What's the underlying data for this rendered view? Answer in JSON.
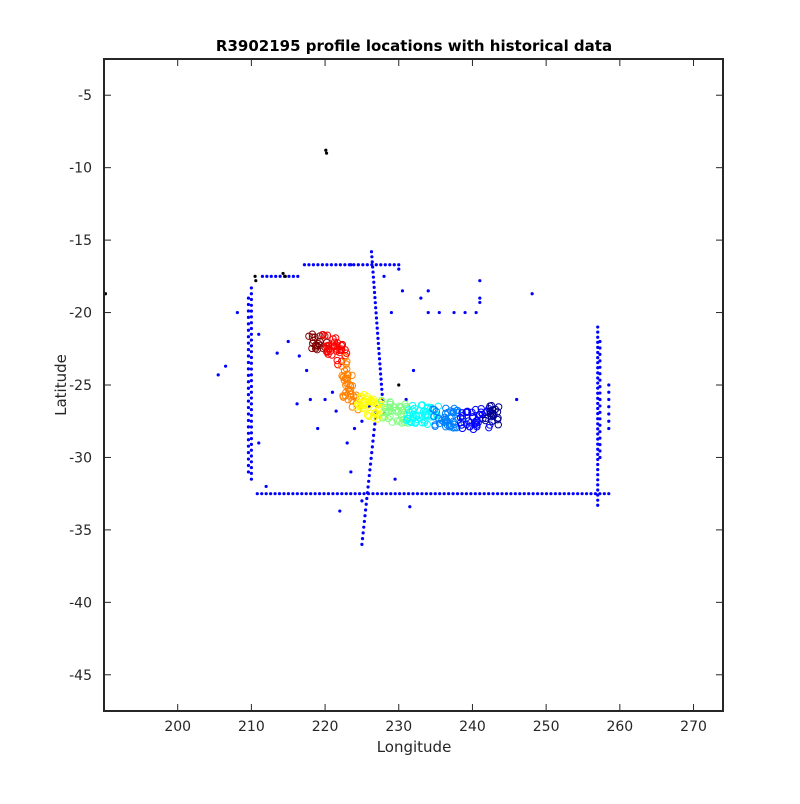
{
  "chart_data": {
    "type": "scatter",
    "title": "R3902195 profile locations with historical data",
    "xlabel": "Longitude",
    "ylabel": "Latitude",
    "xlim": [
      190,
      274
    ],
    "ylim": [
      -47.5,
      -2.5
    ],
    "xticks": [
      200,
      210,
      220,
      230,
      240,
      250,
      260,
      270
    ],
    "yticks": [
      -5,
      -10,
      -15,
      -20,
      -25,
      -30,
      -35,
      -40,
      -45
    ],
    "x_tick_labels": [
      "200",
      "210",
      "220",
      "230",
      "240",
      "250",
      "260",
      "270"
    ],
    "y_tick_labels": [
      "-5",
      "-10",
      "-15",
      "-20",
      "-25",
      "-30",
      "-35",
      "-40",
      "-45"
    ],
    "grid": false,
    "legend": "none",
    "colors": {
      "historical": "#0000ff",
      "black_points": "#000000",
      "axis": "#262626",
      "profile_colormap": [
        "#00008f",
        "#0000ff",
        "#0080ff",
        "#00ffff",
        "#80ff80",
        "#ffff00",
        "#ff8000",
        "#ff0000",
        "#800000"
      ]
    },
    "series": [
      {
        "marker": "dot",
        "color": "#0000ff",
        "segments": [
          {
            "from": [
              210.8,
              -32.5
            ],
            "to": [
              258.5,
              -32.5
            ],
            "step": 0.6
          },
          {
            "from": [
              211.5,
              -17.5
            ],
            "to": [
              216.3,
              -17.5
            ],
            "step": 0.6
          },
          {
            "from": [
              217.2,
              -16.7
            ],
            "to": [
              230.0,
              -16.7
            ],
            "step": 0.6
          },
          {
            "from": [
              210.0,
              -18.3
            ],
            "to": [
              210.0,
              -31.5
            ],
            "step": 0.4
          },
          {
            "from": [
              209.6,
              -19.0
            ],
            "to": [
              209.6,
              -31.0
            ],
            "step": 0.45
          },
          {
            "from": [
              257.0,
              -21.0
            ],
            "to": [
              257.0,
              -33.3
            ],
            "step": 0.35
          },
          {
            "from": [
              257.3,
              -22.0
            ],
            "to": [
              257.3,
              -30.0
            ],
            "step": 0.45
          },
          {
            "from": [
              258.5,
              -25.0
            ],
            "to": [
              258.5,
              -28.0
            ],
            "step": 0.5
          },
          {
            "from": [
              226.3,
              -15.8
            ],
            "to": [
              227.8,
              -26.0
            ],
            "step": 0.35
          },
          {
            "from": [
              227.0,
              -26.5
            ],
            "to": [
              225.0,
              -36.0
            ],
            "step": 0.4
          }
        ],
        "points": [
          [
            208.1,
            -20.0
          ],
          [
            206.5,
            -23.7
          ],
          [
            205.5,
            -24.3
          ],
          [
            211.0,
            -21.5
          ],
          [
            211.0,
            -29.0
          ],
          [
            212.0,
            -32.0
          ],
          [
            213.5,
            -22.8
          ],
          [
            215.0,
            -22.0
          ],
          [
            216.5,
            -23.0
          ],
          [
            217.5,
            -24.0
          ],
          [
            216.2,
            -26.3
          ],
          [
            218.0,
            -26.0
          ],
          [
            219.0,
            -28.0
          ],
          [
            220.0,
            -26.0
          ],
          [
            221.0,
            -25.5
          ],
          [
            221.5,
            -26.8
          ],
          [
            222.0,
            -33.7
          ],
          [
            223.0,
            -29.0
          ],
          [
            223.5,
            -31.0
          ],
          [
            224.0,
            -28.0
          ],
          [
            225.0,
            -27.5
          ],
          [
            226.0,
            -26.5
          ],
          [
            223.5,
            -16.7
          ],
          [
            228.0,
            -17.5
          ],
          [
            229.0,
            -20.0
          ],
          [
            230.5,
            -18.5
          ],
          [
            230.0,
            -17.0
          ],
          [
            231.0,
            -26.0
          ],
          [
            231.5,
            -33.4
          ],
          [
            232.0,
            -24.0
          ],
          [
            233.0,
            -19.0
          ],
          [
            234.0,
            -18.5
          ],
          [
            234.0,
            -20.0
          ],
          [
            235.5,
            -20.0
          ],
          [
            237.5,
            -20.0
          ],
          [
            239.0,
            -20.0
          ],
          [
            240.5,
            -20.0
          ],
          [
            241.0,
            -17.8
          ],
          [
            241.0,
            -19.0
          ],
          [
            241.0,
            -19.3
          ],
          [
            246.0,
            -26.0
          ],
          [
            248.1,
            -18.7
          ],
          [
            225.0,
            -33.0
          ],
          [
            229.5,
            -31.5
          ]
        ]
      },
      {
        "marker": "dot",
        "color": "#000000",
        "points": [
          [
            220.1,
            -8.8
          ],
          [
            220.2,
            -9.0
          ],
          [
            210.5,
            -17.5
          ],
          [
            210.6,
            -17.8
          ],
          [
            214.3,
            -17.3
          ],
          [
            214.6,
            -17.5
          ],
          [
            190.2,
            -18.7
          ],
          [
            230.0,
            -25.0
          ],
          [
            228.0,
            -27.0
          ]
        ]
      },
      {
        "marker": "circle",
        "colormap": "jet",
        "path": [
          [
            218.0,
            -22.2
          ],
          [
            219.5,
            -22.0
          ],
          [
            221.0,
            -22.3
          ],
          [
            222.0,
            -22.5
          ],
          [
            223.0,
            -24.5
          ],
          [
            223.0,
            -25.3
          ],
          [
            224.0,
            -26.0
          ],
          [
            225.0,
            -26.4
          ],
          [
            226.0,
            -26.6
          ],
          [
            227.5,
            -26.7
          ],
          [
            229.0,
            -26.8
          ],
          [
            230.0,
            -27.0
          ],
          [
            231.5,
            -27.0
          ],
          [
            233.0,
            -27.0
          ],
          [
            234.5,
            -27.1
          ],
          [
            236.0,
            -27.2
          ],
          [
            238.0,
            -27.3
          ],
          [
            240.0,
            -27.4
          ],
          [
            241.5,
            -27.3
          ],
          [
            242.5,
            -27.0
          ],
          [
            243.5,
            -27.2
          ]
        ],
        "count": 320
      }
    ]
  }
}
